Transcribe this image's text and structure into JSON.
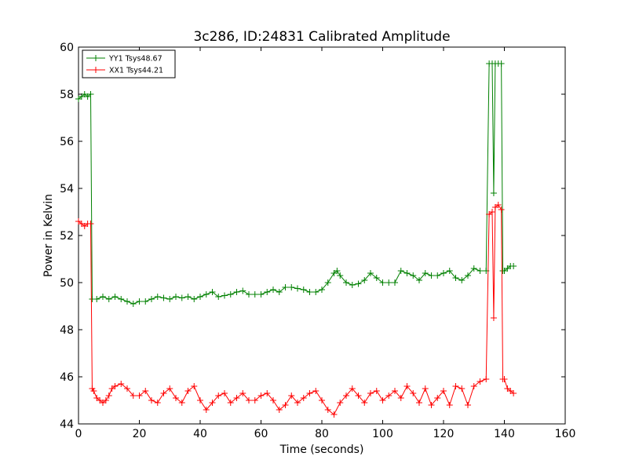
{
  "chart_data": {
    "type": "line",
    "title": "3c286, ID:24831 Calibrated Amplitude",
    "xlabel": "Time (seconds)",
    "ylabel": "Power in Kelvin",
    "xlim": [
      0,
      160
    ],
    "ylim": [
      44,
      60
    ],
    "xticks": [
      0,
      20,
      40,
      60,
      80,
      100,
      120,
      140,
      160
    ],
    "yticks": [
      44,
      46,
      48,
      50,
      52,
      54,
      56,
      58,
      60
    ],
    "grid": false,
    "legend": {
      "location": "top-left"
    },
    "series": [
      {
        "name": "YY1 Tsys48.67",
        "color": "#008000",
        "marker": "+",
        "points": [
          [
            0,
            57.8
          ],
          [
            1,
            57.9
          ],
          [
            2,
            58.0
          ],
          [
            3,
            57.9
          ],
          [
            4,
            58.0
          ],
          [
            4.5,
            49.3
          ],
          [
            6,
            49.3
          ],
          [
            8,
            49.4
          ],
          [
            10,
            49.3
          ],
          [
            12,
            49.4
          ],
          [
            14,
            49.3
          ],
          [
            16,
            49.2
          ],
          [
            18,
            49.1
          ],
          [
            20,
            49.2
          ],
          [
            22,
            49.2
          ],
          [
            24,
            49.3
          ],
          [
            26,
            49.4
          ],
          [
            28,
            49.35
          ],
          [
            30,
            49.3
          ],
          [
            32,
            49.4
          ],
          [
            34,
            49.35
          ],
          [
            36,
            49.4
          ],
          [
            38,
            49.3
          ],
          [
            40,
            49.4
          ],
          [
            42,
            49.5
          ],
          [
            44,
            49.6
          ],
          [
            46,
            49.4
          ],
          [
            48,
            49.45
          ],
          [
            50,
            49.5
          ],
          [
            52,
            49.6
          ],
          [
            54,
            49.65
          ],
          [
            56,
            49.5
          ],
          [
            58,
            49.5
          ],
          [
            60,
            49.5
          ],
          [
            62,
            49.6
          ],
          [
            64,
            49.7
          ],
          [
            66,
            49.6
          ],
          [
            68,
            49.8
          ],
          [
            70,
            49.8
          ],
          [
            72,
            49.75
          ],
          [
            74,
            49.7
          ],
          [
            76,
            49.6
          ],
          [
            78,
            49.6
          ],
          [
            80,
            49.7
          ],
          [
            82,
            50.0
          ],
          [
            84,
            50.4
          ],
          [
            85,
            50.5
          ],
          [
            86,
            50.3
          ],
          [
            88,
            50.0
          ],
          [
            90,
            49.9
          ],
          [
            92,
            49.95
          ],
          [
            94,
            50.1
          ],
          [
            96,
            50.4
          ],
          [
            98,
            50.2
          ],
          [
            100,
            50.0
          ],
          [
            102,
            50.0
          ],
          [
            104,
            50.0
          ],
          [
            106,
            50.5
          ],
          [
            108,
            50.4
          ],
          [
            110,
            50.3
          ],
          [
            112,
            50.1
          ],
          [
            114,
            50.4
          ],
          [
            116,
            50.3
          ],
          [
            118,
            50.3
          ],
          [
            120,
            50.4
          ],
          [
            122,
            50.5
          ],
          [
            124,
            50.2
          ],
          [
            126,
            50.1
          ],
          [
            128,
            50.3
          ],
          [
            130,
            50.6
          ],
          [
            132,
            50.5
          ],
          [
            134,
            50.5
          ],
          [
            135,
            59.3
          ],
          [
            136,
            59.3
          ],
          [
            136.5,
            53.8
          ],
          [
            137,
            59.3
          ],
          [
            138,
            59.3
          ],
          [
            139,
            59.3
          ],
          [
            139.5,
            50.5
          ],
          [
            140,
            50.5
          ],
          [
            141,
            50.6
          ],
          [
            142,
            50.7
          ],
          [
            143,
            50.7
          ]
        ]
      },
      {
        "name": "XX1 Tsys44.21",
        "color": "#ff0000",
        "marker": "+",
        "points": [
          [
            0,
            52.6
          ],
          [
            1,
            52.5
          ],
          [
            2,
            52.4
          ],
          [
            3,
            52.5
          ],
          [
            4,
            52.5
          ],
          [
            4.5,
            45.5
          ],
          [
            5,
            45.4
          ],
          [
            6,
            45.1
          ],
          [
            7,
            45.0
          ],
          [
            8,
            44.9
          ],
          [
            9,
            45.0
          ],
          [
            10,
            45.2
          ],
          [
            11,
            45.5
          ],
          [
            12,
            45.6
          ],
          [
            14,
            45.7
          ],
          [
            16,
            45.5
          ],
          [
            18,
            45.2
          ],
          [
            20,
            45.2
          ],
          [
            22,
            45.4
          ],
          [
            24,
            45.0
          ],
          [
            26,
            44.9
          ],
          [
            28,
            45.3
          ],
          [
            30,
            45.5
          ],
          [
            32,
            45.1
          ],
          [
            34,
            44.9
          ],
          [
            36,
            45.4
          ],
          [
            38,
            45.6
          ],
          [
            40,
            45.0
          ],
          [
            42,
            44.6
          ],
          [
            44,
            44.9
          ],
          [
            46,
            45.2
          ],
          [
            48,
            45.3
          ],
          [
            50,
            44.9
          ],
          [
            52,
            45.1
          ],
          [
            54,
            45.3
          ],
          [
            56,
            45.0
          ],
          [
            58,
            45.0
          ],
          [
            60,
            45.2
          ],
          [
            62,
            45.3
          ],
          [
            64,
            45.0
          ],
          [
            66,
            44.6
          ],
          [
            68,
            44.8
          ],
          [
            70,
            45.2
          ],
          [
            72,
            44.9
          ],
          [
            74,
            45.1
          ],
          [
            76,
            45.3
          ],
          [
            78,
            45.4
          ],
          [
            80,
            45.0
          ],
          [
            82,
            44.6
          ],
          [
            84,
            44.4
          ],
          [
            86,
            44.9
          ],
          [
            88,
            45.2
          ],
          [
            90,
            45.5
          ],
          [
            92,
            45.2
          ],
          [
            94,
            44.9
          ],
          [
            96,
            45.3
          ],
          [
            98,
            45.4
          ],
          [
            100,
            45.0
          ],
          [
            102,
            45.2
          ],
          [
            104,
            45.4
          ],
          [
            106,
            45.1
          ],
          [
            108,
            45.6
          ],
          [
            110,
            45.3
          ],
          [
            112,
            44.9
          ],
          [
            114,
            45.5
          ],
          [
            116,
            44.8
          ],
          [
            118,
            45.1
          ],
          [
            120,
            45.4
          ],
          [
            122,
            44.8
          ],
          [
            124,
            45.6
          ],
          [
            126,
            45.5
          ],
          [
            128,
            44.8
          ],
          [
            130,
            45.6
          ],
          [
            132,
            45.8
          ],
          [
            134,
            45.9
          ],
          [
            135,
            52.9
          ],
          [
            136,
            53.0
          ],
          [
            136.5,
            48.5
          ],
          [
            137,
            53.2
          ],
          [
            138,
            53.3
          ],
          [
            139,
            53.1
          ],
          [
            139.5,
            45.9
          ],
          [
            140,
            45.9
          ],
          [
            141,
            45.5
          ],
          [
            142,
            45.4
          ],
          [
            143,
            45.3
          ]
        ]
      }
    ]
  }
}
